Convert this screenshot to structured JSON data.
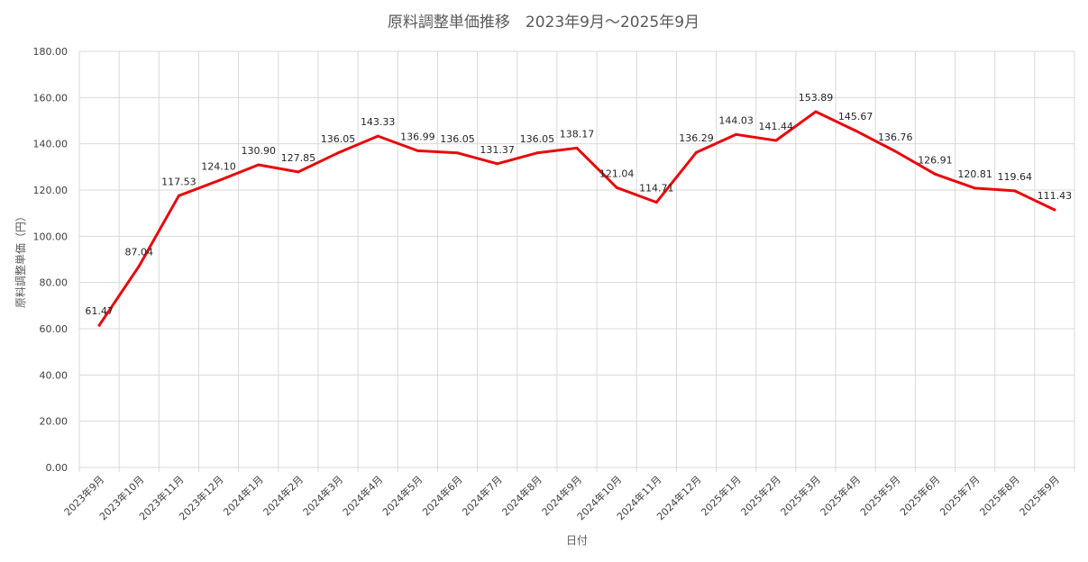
{
  "chart_data": {
    "type": "line",
    "title": "原料調整単価推移　2023年9月～2025年9月",
    "xlabel": "日付",
    "ylabel": "原料調整単価（円）",
    "ylim": [
      0,
      180
    ],
    "yticks": [
      "0.00",
      "20.00",
      "40.00",
      "60.00",
      "80.00",
      "100.00",
      "120.00",
      "140.00",
      "160.00",
      "180.00"
    ],
    "grid": true,
    "categories": [
      "2023年9月",
      "2023年10月",
      "2023年11月",
      "2023年12月",
      "2024年1月",
      "2024年2月",
      "2024年3月",
      "2024年4月",
      "2024年5月",
      "2024年6月",
      "2024年7月",
      "2024年8月",
      "2024年9月",
      "2024年10月",
      "2024年11月",
      "2024年12月",
      "2025年1月",
      "2025年2月",
      "2025年3月",
      "2025年4月",
      "2025年5月",
      "2025年6月",
      "2025年7月",
      "2025年8月",
      "2025年9月"
    ],
    "series": [
      {
        "color": "#e8090d",
        "values": [
          61.47,
          87.04,
          117.53,
          124.1,
          130.9,
          127.85,
          136.05,
          143.33,
          136.99,
          136.05,
          131.37,
          136.05,
          138.17,
          121.04,
          114.71,
          136.29,
          144.03,
          141.44,
          153.89,
          145.67,
          136.76,
          126.91,
          120.81,
          119.64,
          111.43
        ],
        "labels": [
          "61.47",
          "87.04",
          "117.53",
          "124.10",
          "130.90",
          "127.85",
          "136.05",
          "143.33",
          "136.99",
          "136.05",
          "131.37",
          "136.05",
          "138.17",
          "121.04",
          "114.71",
          "136.29",
          "144.03",
          "141.44",
          "153.89",
          "145.67",
          "136.76",
          "126.91",
          "120.81",
          "119.64",
          "111.43"
        ]
      }
    ]
  }
}
